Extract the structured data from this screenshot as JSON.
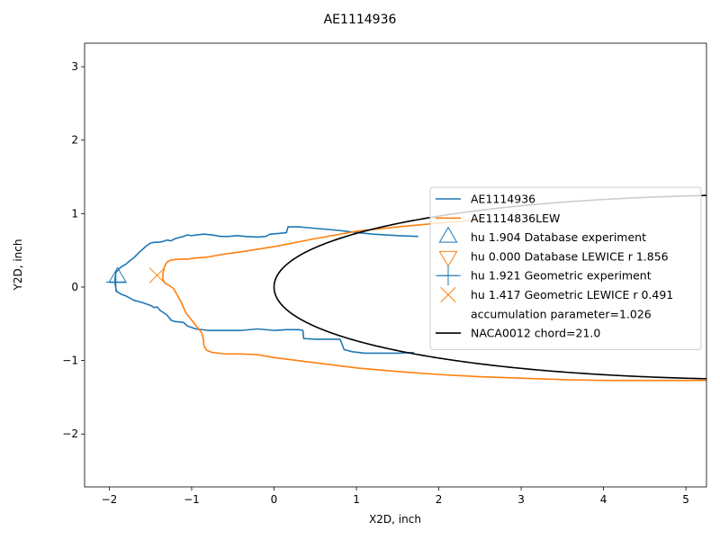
{
  "chart_data": {
    "type": "line",
    "title": "AE1114936",
    "xlabel": "X2D, inch",
    "ylabel": "Y2D, inch",
    "xlim": [
      -2.3,
      5.25
    ],
    "ylim": [
      -2.72,
      3.32
    ],
    "xticks": [
      -2,
      -1,
      0,
      1,
      2,
      3,
      4,
      5
    ],
    "xtick_labels": [
      "−2",
      "−1",
      "0",
      "1",
      "2",
      "3",
      "4",
      "5"
    ],
    "yticks": [
      -2,
      -1,
      0,
      1,
      2,
      3
    ],
    "ytick_labels": [
      "−2",
      "−1",
      "0",
      "1",
      "2",
      "3"
    ],
    "grid": false,
    "legend_position": "center-right",
    "series": [
      {
        "name": "AE1114936",
        "color": "#1f77b4",
        "style": "line",
        "points": [
          [
            1.75,
            0.69
          ],
          [
            1.5,
            0.7
          ],
          [
            1.2,
            0.72
          ],
          [
            0.95,
            0.75
          ],
          [
            0.8,
            0.77
          ],
          [
            0.6,
            0.79
          ],
          [
            0.4,
            0.81
          ],
          [
            0.3,
            0.82
          ],
          [
            0.17,
            0.82
          ],
          [
            0.15,
            0.74
          ],
          [
            0.05,
            0.73
          ],
          [
            -0.05,
            0.72
          ],
          [
            -0.1,
            0.69
          ],
          [
            -0.2,
            0.68
          ],
          [
            -0.35,
            0.69
          ],
          [
            -0.45,
            0.7
          ],
          [
            -0.55,
            0.69
          ],
          [
            -0.65,
            0.69
          ],
          [
            -0.75,
            0.71
          ],
          [
            -0.85,
            0.72
          ],
          [
            -0.95,
            0.71
          ],
          [
            -1.0,
            0.7
          ],
          [
            -1.05,
            0.71
          ],
          [
            -1.1,
            0.69
          ],
          [
            -1.2,
            0.66
          ],
          [
            -1.25,
            0.63
          ],
          [
            -1.3,
            0.64
          ],
          [
            -1.35,
            0.62
          ],
          [
            -1.4,
            0.61
          ],
          [
            -1.45,
            0.61
          ],
          [
            -1.5,
            0.6
          ],
          [
            -1.55,
            0.56
          ],
          [
            -1.6,
            0.51
          ],
          [
            -1.65,
            0.46
          ],
          [
            -1.7,
            0.4
          ],
          [
            -1.75,
            0.36
          ],
          [
            -1.8,
            0.31
          ],
          [
            -1.85,
            0.28
          ],
          [
            -1.88,
            0.25
          ],
          [
            -1.92,
            0.2
          ],
          [
            -1.93,
            0.12
          ],
          [
            -1.93,
            0.05
          ],
          [
            -1.92,
            -0.02
          ],
          [
            -1.91,
            -0.06
          ],
          [
            -1.85,
            -0.1
          ],
          [
            -1.8,
            -0.12
          ],
          [
            -1.75,
            -0.15
          ],
          [
            -1.7,
            -0.18
          ],
          [
            -1.6,
            -0.21
          ],
          [
            -1.5,
            -0.25
          ],
          [
            -1.45,
            -0.28
          ],
          [
            -1.42,
            -0.27
          ],
          [
            -1.38,
            -0.32
          ],
          [
            -1.3,
            -0.38
          ],
          [
            -1.25,
            -0.45
          ],
          [
            -1.2,
            -0.47
          ],
          [
            -1.1,
            -0.48
          ],
          [
            -1.05,
            -0.53
          ],
          [
            -0.95,
            -0.57
          ],
          [
            -0.8,
            -0.59
          ],
          [
            -0.6,
            -0.59
          ],
          [
            -0.4,
            -0.59
          ],
          [
            -0.2,
            -0.57
          ],
          [
            0.0,
            -0.59
          ],
          [
            0.15,
            -0.58
          ],
          [
            0.3,
            -0.58
          ],
          [
            0.35,
            -0.59
          ],
          [
            0.36,
            -0.7
          ],
          [
            0.5,
            -0.71
          ],
          [
            0.7,
            -0.71
          ],
          [
            0.8,
            -0.71
          ],
          [
            0.82,
            -0.76
          ],
          [
            0.85,
            -0.85
          ],
          [
            0.95,
            -0.88
          ],
          [
            1.1,
            -0.9
          ],
          [
            1.3,
            -0.9
          ],
          [
            1.5,
            -0.9
          ],
          [
            1.7,
            -0.89
          ]
        ]
      },
      {
        "name": "AE1114836LEW",
        "color": "#ff7f0e",
        "style": "line",
        "points": [
          [
            2.5,
            0.92
          ],
          [
            2.0,
            0.87
          ],
          [
            1.5,
            0.82
          ],
          [
            1.0,
            0.76
          ],
          [
            0.5,
            0.66
          ],
          [
            0.0,
            0.55
          ],
          [
            -0.4,
            0.48
          ],
          [
            -0.6,
            0.45
          ],
          [
            -0.8,
            0.41
          ],
          [
            -0.9,
            0.4
          ],
          [
            -1.0,
            0.39
          ],
          [
            -1.05,
            0.38
          ],
          [
            -1.15,
            0.38
          ],
          [
            -1.25,
            0.37
          ],
          [
            -1.3,
            0.34
          ],
          [
            -1.33,
            0.28
          ],
          [
            -1.35,
            0.18
          ],
          [
            -1.35,
            0.1
          ],
          [
            -1.32,
            0.05
          ],
          [
            -1.27,
            0.02
          ],
          [
            -1.22,
            -0.02
          ],
          [
            -1.18,
            -0.1
          ],
          [
            -1.13,
            -0.2
          ],
          [
            -1.07,
            -0.35
          ],
          [
            -1.0,
            -0.45
          ],
          [
            -0.93,
            -0.55
          ],
          [
            -0.88,
            -0.62
          ],
          [
            -0.86,
            -0.7
          ],
          [
            -0.85,
            -0.8
          ],
          [
            -0.82,
            -0.86
          ],
          [
            -0.75,
            -0.89
          ],
          [
            -0.6,
            -0.91
          ],
          [
            -0.4,
            -0.91
          ],
          [
            -0.2,
            -0.92
          ],
          [
            0.0,
            -0.96
          ],
          [
            0.5,
            -1.03
          ],
          [
            1.0,
            -1.1
          ],
          [
            1.5,
            -1.15
          ],
          [
            2.0,
            -1.19
          ],
          [
            2.5,
            -1.22
          ],
          [
            3.0,
            -1.24
          ],
          [
            3.5,
            -1.26
          ],
          [
            4.0,
            -1.27
          ],
          [
            4.5,
            -1.27
          ],
          [
            5.0,
            -1.27
          ],
          [
            5.25,
            -1.27
          ]
        ]
      },
      {
        "name": "hu 1.904 Database experiment",
        "color": "#1f77b4",
        "style": "marker",
        "marker": "triangle-up",
        "points": [
          [
            -1.9,
            0.13
          ]
        ]
      },
      {
        "name": "hu 0.000 Database LEWICE r 1.856",
        "color": "#ff7f0e",
        "style": "marker",
        "marker": "triangle-down",
        "points": []
      },
      {
        "name": "hu 1.921 Geometric experiment",
        "color": "#1f77b4",
        "style": "marker",
        "marker": "plus",
        "points": [
          [
            -1.92,
            0.07
          ]
        ]
      },
      {
        "name": "hu 1.417 Geometric LEWICE r 0.491",
        "color": "#ff7f0e",
        "style": "marker",
        "marker": "x",
        "points": [
          [
            -1.42,
            0.16
          ]
        ]
      },
      {
        "name": "accumulation parameter=1.026",
        "color": "none",
        "style": "none",
        "points": []
      },
      {
        "name": "NACA0012 chord=21.0",
        "color": "#000000",
        "style": "airfoil",
        "chord": 21.0,
        "thickness": 0.12,
        "leading_edge": [
          0,
          0
        ]
      }
    ]
  }
}
